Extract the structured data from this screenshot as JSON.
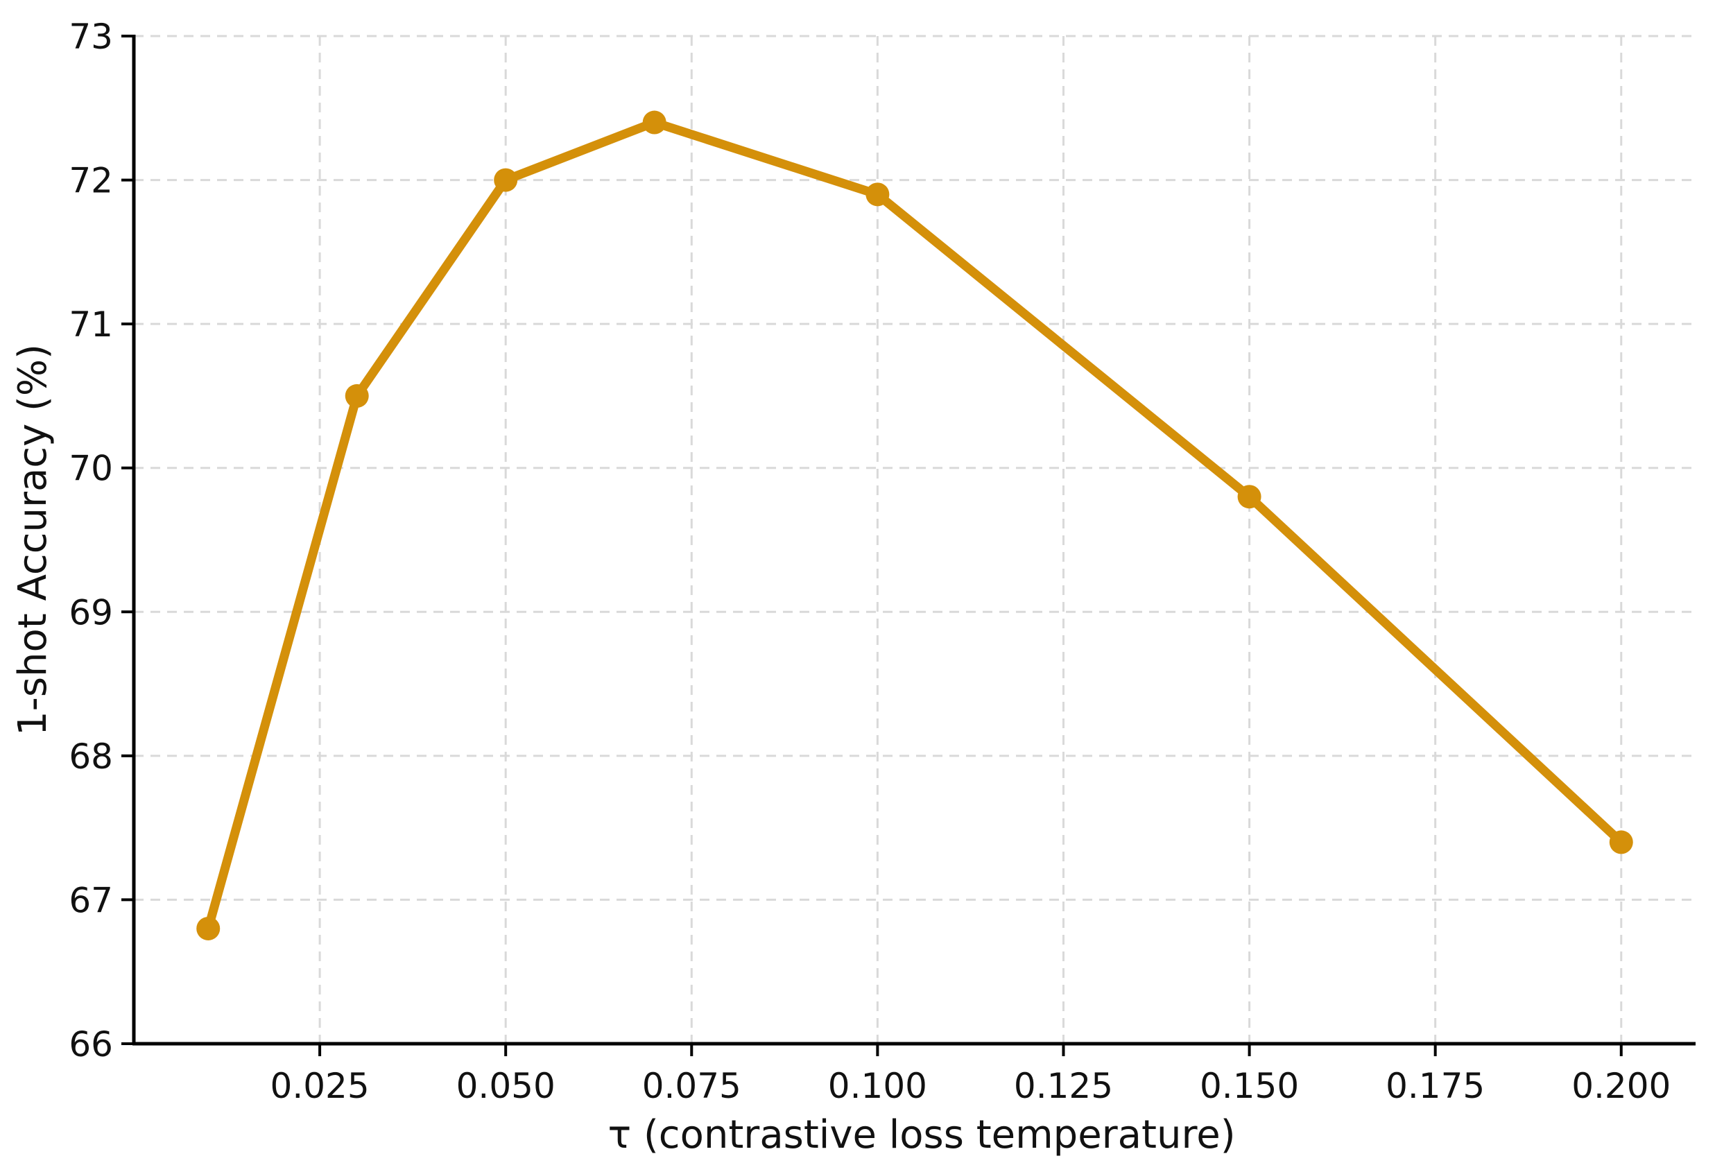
{
  "chart_data": {
    "type": "line",
    "title": "",
    "xlabel": "τ (contrastive loss temperature)",
    "ylabel": "1-shot Accuracy (%)",
    "xlim": [
      0.0,
      0.21
    ],
    "ylim": [
      66,
      73
    ],
    "x_ticks": [
      0.025,
      0.05,
      0.075,
      0.1,
      0.125,
      0.15,
      0.175,
      0.2
    ],
    "x_tick_labels": [
      "0.025",
      "0.050",
      "0.075",
      "0.100",
      "0.125",
      "0.150",
      "0.175",
      "0.200"
    ],
    "y_ticks": [
      66,
      67,
      68,
      69,
      70,
      71,
      72,
      73
    ],
    "y_tick_labels": [
      "66",
      "67",
      "68",
      "69",
      "70",
      "71",
      "72",
      "73"
    ],
    "grid": true,
    "legend": "none",
    "series": [
      {
        "color": "#d4900a",
        "x": [
          0.01,
          0.03,
          0.05,
          0.07,
          0.1,
          0.15,
          0.2
        ],
        "y": [
          66.8,
          70.5,
          72.0,
          72.4,
          71.9,
          69.8,
          67.4
        ]
      }
    ]
  }
}
